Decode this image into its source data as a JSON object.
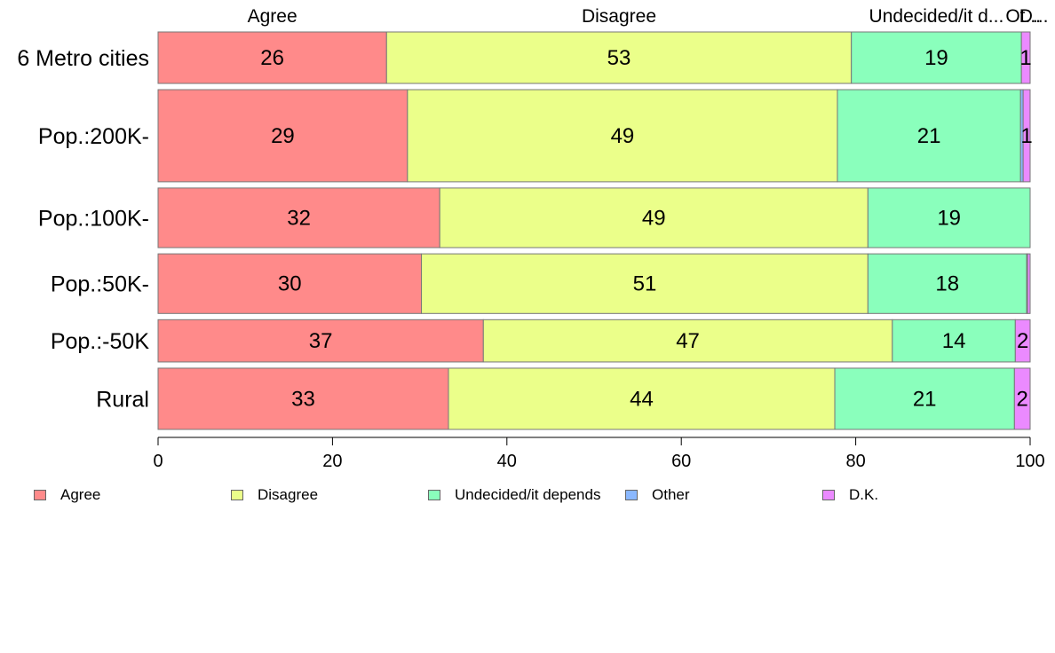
{
  "chart_data": {
    "type": "bar",
    "orientation": "horizontal",
    "stacked": true,
    "categories": [
      "6 Metro cities",
      "Pop.:200K-",
      "Pop.:100K-",
      "Pop.:50K-",
      "Pop.:-50K",
      "Rural"
    ],
    "row_weights": [
      0.95,
      1.7,
      1.1,
      1.1,
      0.78,
      1.13
    ],
    "series": [
      {
        "name": "Agree",
        "color": "#FF8A8A",
        "values": [
          26.2,
          28.6,
          32.3,
          30.2,
          37.3,
          33.3
        ],
        "labels": [
          "26",
          "29",
          "32",
          "30",
          "37",
          "33"
        ]
      },
      {
        "name": "Disagree",
        "color": "#EBFF8A",
        "values": [
          53.3,
          49.3,
          49.1,
          51.2,
          46.9,
          44.3
        ],
        "labels": [
          "53",
          "49",
          "49",
          "51",
          "47",
          "44"
        ]
      },
      {
        "name": "Undecided/it depends",
        "color": "#8AFFBC",
        "values": [
          19.5,
          21.0,
          18.6,
          18.2,
          14.1,
          20.6
        ],
        "labels": [
          "19",
          "21",
          "19",
          "18",
          "14",
          "21"
        ]
      },
      {
        "name": "Other",
        "color": "#8AB8FF",
        "values": [
          0.0,
          0.3,
          0.0,
          0.1,
          0.0,
          0.0
        ],
        "labels": [
          "",
          "",
          "",
          "",
          "",
          ""
        ]
      },
      {
        "name": "D.K.",
        "color": "#EB8AFF",
        "values": [
          1.0,
          0.8,
          0.0,
          0.3,
          1.7,
          1.8
        ],
        "labels": [
          "1",
          "1",
          "",
          "",
          "2",
          "2"
        ]
      }
    ],
    "top_labels": [
      "Agree",
      "Disagree",
      "Undecided/it d...",
      "Ot...",
      "D..."
    ],
    "xlim": [
      0,
      100
    ],
    "xticks": [
      0,
      20,
      40,
      60,
      80,
      100
    ],
    "grid": false,
    "legend_position": "bottom"
  }
}
